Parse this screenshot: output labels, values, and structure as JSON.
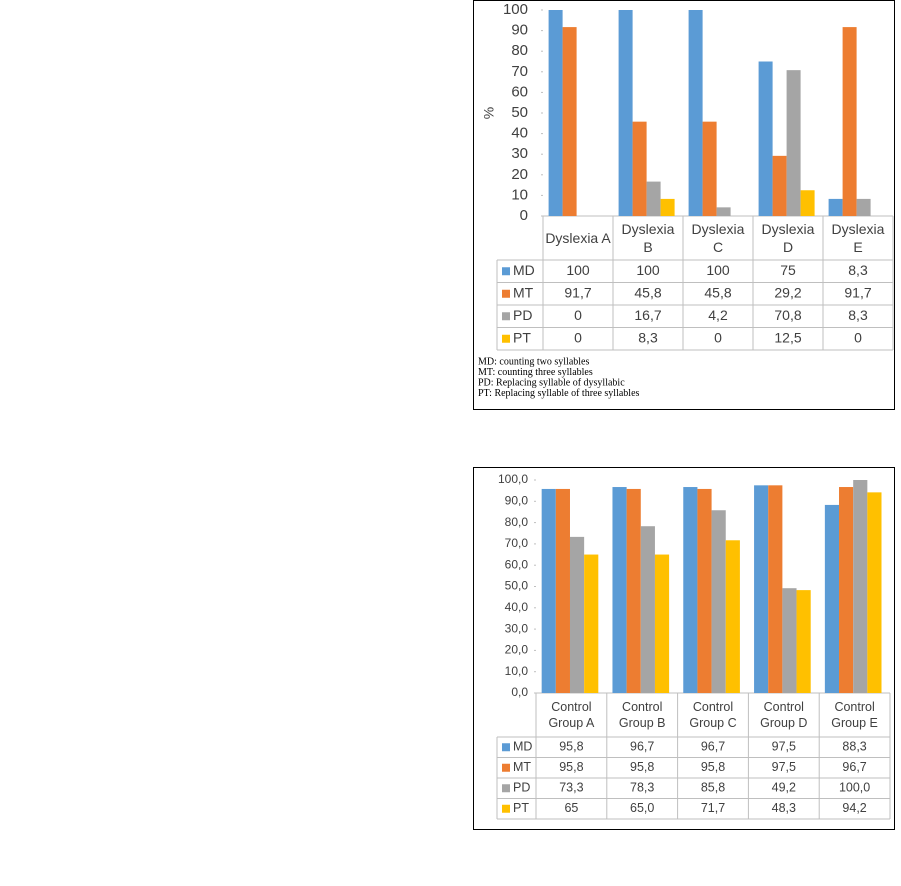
{
  "chart_data": [
    {
      "type": "bar",
      "ylabel": "%",
      "categories": [
        "Dyslexia A",
        "Dyslexia B",
        "Dyslexia C",
        "Dyslexia D",
        "Dyslexia E"
      ],
      "series": [
        {
          "name": "MD",
          "color": "#5b9bd5",
          "values": [
            100,
            100,
            100,
            75,
            8.3
          ],
          "value_labels": [
            "100",
            "100",
            "100",
            "75",
            "8,3"
          ]
        },
        {
          "name": "MT",
          "color": "#ed7d31",
          "values": [
            91.7,
            45.8,
            45.8,
            29.2,
            91.7
          ],
          "value_labels": [
            "91,7",
            "45,8",
            "45,8",
            "29,2",
            "91,7"
          ]
        },
        {
          "name": "PD",
          "color": "#a5a5a5",
          "values": [
            0,
            16.7,
            4.2,
            70.8,
            8.3
          ],
          "value_labels": [
            "0",
            "16,7",
            "4,2",
            "70,8",
            "8,3"
          ]
        },
        {
          "name": "PT",
          "color": "#ffc000",
          "values": [
            0,
            8.3,
            0,
            12.5,
            0
          ],
          "value_labels": [
            "0",
            "8,3",
            "0",
            "12,5",
            "0"
          ]
        }
      ],
      "ylim": [
        0,
        100
      ],
      "yticks": [
        0,
        10,
        20,
        30,
        40,
        50,
        60,
        70,
        80,
        90,
        100
      ],
      "notes": [
        "MD: counting two syllables",
        "MT: counting three syllables",
        "PD: Replacing syllable of dysyllabic",
        "PT: Replacing syllable of three syllables"
      ]
    },
    {
      "type": "bar",
      "categories": [
        "Control Group A",
        "Control Group B",
        "Control Group C",
        "Control Group D",
        "Control Group E"
      ],
      "series": [
        {
          "name": "MD",
          "color": "#5b9bd5",
          "values": [
            95.8,
            96.7,
            96.7,
            97.5,
            88.3
          ],
          "value_labels": [
            "95,8",
            "96,7",
            "96,7",
            "97,5",
            "88,3"
          ]
        },
        {
          "name": "MT",
          "color": "#ed7d31",
          "values": [
            95.8,
            95.8,
            95.8,
            97.5,
            96.7
          ],
          "value_labels": [
            "95,8",
            "95,8",
            "95,8",
            "97,5",
            "96,7"
          ]
        },
        {
          "name": "PD",
          "color": "#a5a5a5",
          "values": [
            73.3,
            78.3,
            85.8,
            49.2,
            100.0
          ],
          "value_labels": [
            "73,3",
            "78,3",
            "85,8",
            "49,2",
            "100,0"
          ]
        },
        {
          "name": "PT",
          "color": "#ffc000",
          "values": [
            65,
            65.0,
            71.7,
            48.3,
            94.2
          ],
          "value_labels": [
            "65",
            "65,0",
            "71,7",
            "48,3",
            "94,2"
          ]
        }
      ],
      "ylim": [
        0,
        100
      ],
      "yticks": [
        {
          "value": 0,
          "label": "0,0"
        },
        {
          "value": 10,
          "label": "10,0"
        },
        {
          "value": 20,
          "label": "20,0"
        },
        {
          "value": 30,
          "label": "30,0"
        },
        {
          "value": 40,
          "label": "40,0"
        },
        {
          "value": 50,
          "label": "50,0"
        },
        {
          "value": 60,
          "label": "60,0"
        },
        {
          "value": 70,
          "label": "70,0"
        },
        {
          "value": 80,
          "label": "80,0"
        },
        {
          "value": 90,
          "label": "90,0"
        },
        {
          "value": 100,
          "label": "100,0"
        }
      ]
    }
  ]
}
